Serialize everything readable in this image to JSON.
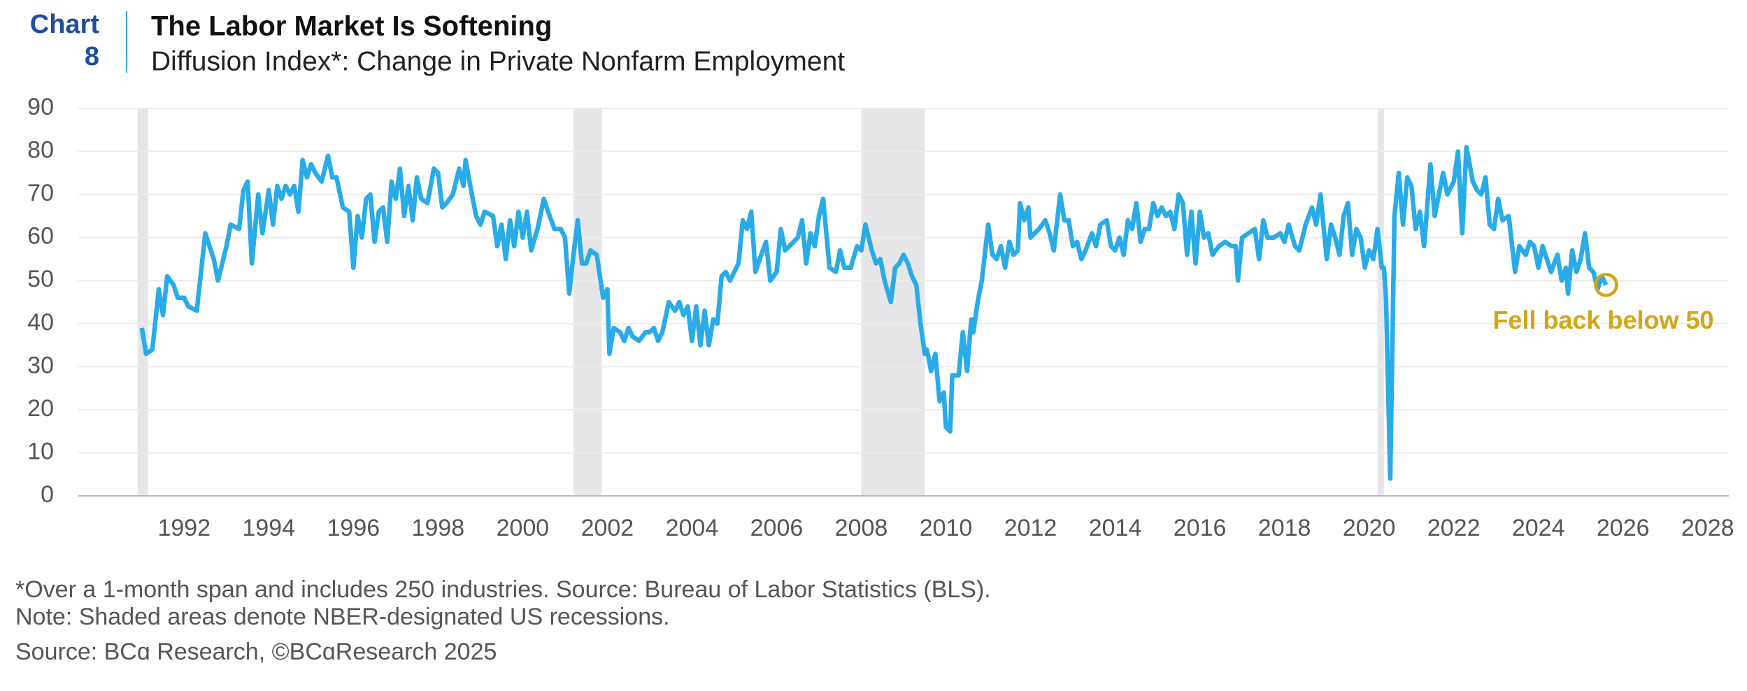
{
  "chart_data": {
    "type": "line",
    "chart_label": [
      "Chart",
      "8"
    ],
    "title": "The Labor Market Is Softening",
    "subtitle": "Diffusion Index*: Change in Private Nonfarm Employment",
    "footnotes": [
      "*Over a 1-month span and includes 250 industries. Source: Bureau of Labor Statistics (BLS).",
      "Note: Shaded areas denote NBER-designated US recessions.",
      "Source: BCɑ Research, ©BCɑResearch 2025"
    ],
    "annotation": "Fell back below 50",
    "color": "#29abe8",
    "annotation_color": "#d4a514",
    "recession_color": "#e6e6e9",
    "grid": true,
    "xlim": [
      1989.5,
      2028.5
    ],
    "xticks": [
      1992,
      1994,
      1996,
      1998,
      2000,
      2002,
      2004,
      2006,
      2008,
      2010,
      2012,
      2014,
      2016,
      2018,
      2020,
      2022,
      2024,
      2026,
      2028
    ],
    "ylim": [
      0,
      90
    ],
    "yticks": [
      0,
      10,
      20,
      30,
      40,
      50,
      60,
      70,
      80,
      90
    ],
    "recessions": [
      [
        1990.9,
        1991.15
      ],
      [
        2001.2,
        2001.87
      ],
      [
        2008.0,
        2009.5
      ],
      [
        2020.2,
        2020.35
      ]
    ],
    "x": [
      1991.0,
      1991.1,
      1991.25,
      1991.4,
      1991.5,
      1991.6,
      1991.75,
      1991.85,
      1992.0,
      1992.1,
      1992.3,
      1992.5,
      1992.7,
      1992.8,
      1993.0,
      1993.1,
      1993.3,
      1993.4,
      1993.5,
      1993.6,
      1993.75,
      1993.85,
      1994.0,
      1994.1,
      1994.2,
      1994.3,
      1994.4,
      1994.5,
      1994.6,
      1994.7,
      1994.8,
      1994.9,
      1995.0,
      1995.1,
      1995.25,
      1995.4,
      1995.5,
      1995.6,
      1995.75,
      1995.9,
      1996.0,
      1996.1,
      1996.2,
      1996.3,
      1996.4,
      1996.5,
      1996.6,
      1996.7,
      1996.8,
      1996.9,
      1997.0,
      1997.1,
      1997.2,
      1997.3,
      1997.4,
      1997.5,
      1997.6,
      1997.75,
      1997.9,
      1998.0,
      1998.1,
      1998.2,
      1998.35,
      1998.5,
      1998.6,
      1998.65,
      1998.8,
      1998.9,
      1999.0,
      1999.1,
      1999.3,
      1999.4,
      1999.5,
      1999.6,
      1999.7,
      1999.8,
      1999.9,
      2000.0,
      2000.1,
      2000.2,
      2000.35,
      2000.5,
      2000.6,
      2000.75,
      2000.9,
      2001.0,
      2001.1,
      2001.2,
      2001.3,
      2001.4,
      2001.5,
      2001.6,
      2001.75,
      2001.9,
      2002.0,
      2002.05,
      2002.15,
      2002.3,
      2002.4,
      2002.5,
      2002.6,
      2002.75,
      2002.9,
      2003.0,
      2003.1,
      2003.2,
      2003.3,
      2003.45,
      2003.6,
      2003.7,
      2003.8,
      2003.9,
      2004.0,
      2004.1,
      2004.2,
      2004.3,
      2004.4,
      2004.5,
      2004.6,
      2004.7,
      2004.8,
      2004.9,
      2005.1,
      2005.2,
      2005.3,
      2005.4,
      2005.5,
      2005.6,
      2005.75,
      2005.85,
      2006.0,
      2006.1,
      2006.2,
      2006.3,
      2006.5,
      2006.6,
      2006.7,
      2006.8,
      2006.9,
      2007.0,
      2007.1,
      2007.25,
      2007.4,
      2007.5,
      2007.6,
      2007.75,
      2007.9,
      2008.0,
      2008.1,
      2008.25,
      2008.35,
      2008.45,
      2008.55,
      2008.7,
      2008.8,
      2008.9,
      2009.0,
      2009.1,
      2009.2,
      2009.3,
      2009.4,
      2009.5,
      2009.55,
      2009.65,
      2009.75,
      2009.85,
      2009.95,
      2010.0,
      2010.1,
      2010.15,
      2010.3,
      2010.4,
      2010.5,
      2010.6,
      2010.65,
      2010.75,
      2010.85,
      2011.0,
      2011.1,
      2011.2,
      2011.3,
      2011.4,
      2011.5,
      2011.6,
      2011.7,
      2011.75,
      2011.85,
      2011.95,
      2012.0,
      2012.2,
      2012.35,
      2012.45,
      2012.55,
      2012.7,
      2012.8,
      2012.9,
      2013.0,
      2013.1,
      2013.2,
      2013.3,
      2013.45,
      2013.55,
      2013.65,
      2013.8,
      2013.9,
      2014.0,
      2014.1,
      2014.2,
      2014.3,
      2014.4,
      2014.5,
      2014.6,
      2014.7,
      2014.8,
      2014.9,
      2015.0,
      2015.1,
      2015.2,
      2015.3,
      2015.4,
      2015.5,
      2015.6,
      2015.7,
      2015.8,
      2015.9,
      2016.0,
      2016.1,
      2016.2,
      2016.3,
      2016.45,
      2016.6,
      2016.75,
      2016.85,
      2016.9,
      2017.0,
      2017.15,
      2017.3,
      2017.4,
      2017.5,
      2017.6,
      2017.75,
      2017.9,
      2018.0,
      2018.1,
      2018.25,
      2018.35,
      2018.5,
      2018.65,
      2018.75,
      2018.85,
      2019.0,
      2019.1,
      2019.2,
      2019.3,
      2019.4,
      2019.5,
      2019.6,
      2019.7,
      2019.8,
      2019.9,
      2020.0,
      2020.1,
      2020.2,
      2020.3,
      2020.35,
      2020.4,
      2020.5,
      2020.6,
      2020.7,
      2020.8,
      2020.9,
      2021.0,
      2021.1,
      2021.2,
      2021.3,
      2021.45,
      2021.55,
      2021.75,
      2021.85,
      2022.0,
      2022.1,
      2022.2,
      2022.3,
      2022.45,
      2022.55,
      2022.65,
      2022.75,
      2022.85,
      2022.95,
      2023.05,
      2023.15,
      2023.3,
      2023.45,
      2023.55,
      2023.7,
      2023.8,
      2023.9,
      2024.0,
      2024.1,
      2024.2,
      2024.3,
      2024.45,
      2024.55,
      2024.65,
      2024.7,
      2024.8,
      2024.9,
      2025.0,
      2025.1,
      2025.2,
      2025.3,
      2025.4,
      2025.5,
      2025.6
    ],
    "values": [
      39,
      33,
      34,
      48,
      42,
      51,
      49,
      46,
      46,
      44,
      43,
      61,
      55,
      50,
      58,
      63,
      62,
      71,
      73,
      54,
      70,
      61,
      71,
      63,
      72,
      69,
      72,
      70,
      72,
      66,
      78,
      74,
      77,
      75,
      73,
      79,
      74,
      74,
      67,
      66,
      53,
      65,
      60,
      69,
      70,
      59,
      66,
      67,
      59,
      73,
      69,
      76,
      65,
      72,
      64,
      74,
      69,
      68,
      76,
      75,
      67,
      68,
      70,
      76,
      72,
      78,
      70,
      65,
      63,
      66,
      65,
      58,
      63,
      55,
      64,
      58,
      66,
      60,
      66,
      57,
      62,
      69,
      66,
      62,
      62,
      60,
      47,
      56,
      64,
      54,
      54,
      57,
      56,
      46,
      48,
      33,
      39,
      38,
      36,
      39,
      37,
      36,
      38,
      38,
      39,
      36,
      38,
      45,
      43,
      45,
      42,
      44,
      36,
      44,
      35,
      43,
      35,
      41,
      40,
      51,
      52,
      50,
      54,
      64,
      62,
      66,
      52,
      55,
      59,
      50,
      52,
      62,
      57,
      58,
      60,
      64,
      54,
      61,
      58,
      65,
      69,
      53,
      52,
      57,
      53,
      53,
      58,
      57,
      63,
      57,
      54,
      55,
      50,
      45,
      53,
      54,
      56,
      54,
      51,
      49,
      40,
      33,
      34,
      29,
      33,
      22,
      24,
      16,
      15,
      28,
      28,
      38,
      29,
      41,
      38,
      45,
      50,
      63,
      56,
      55,
      58,
      53,
      59,
      56,
      57,
      68,
      64,
      67,
      60,
      62,
      64,
      61,
      57,
      70,
      64,
      64,
      58,
      59,
      55,
      57,
      61,
      58,
      63,
      64,
      58,
      57,
      60,
      56,
      64,
      62,
      68,
      59,
      62,
      62,
      68,
      65,
      67,
      65,
      66,
      62,
      70,
      68,
      56,
      66,
      54,
      66,
      60,
      61,
      56,
      58,
      59,
      58,
      58,
      50,
      60,
      61,
      62,
      55,
      64,
      60,
      60,
      61,
      59,
      63,
      58,
      57,
      63,
      67,
      63,
      70,
      55,
      63,
      60,
      56,
      65,
      68,
      56,
      62,
      60,
      53,
      57,
      55,
      62,
      53,
      53,
      46,
      4,
      65,
      75,
      63,
      74,
      72,
      62,
      66,
      58,
      77,
      65,
      75,
      70,
      73,
      80,
      61,
      81,
      73,
      71,
      70,
      74,
      63,
      62,
      69,
      64,
      65,
      52,
      58,
      56,
      59,
      58,
      53,
      58,
      55,
      52,
      56,
      50,
      53,
      47,
      57,
      52,
      55,
      61,
      53,
      52,
      48,
      51,
      49
    ]
  }
}
